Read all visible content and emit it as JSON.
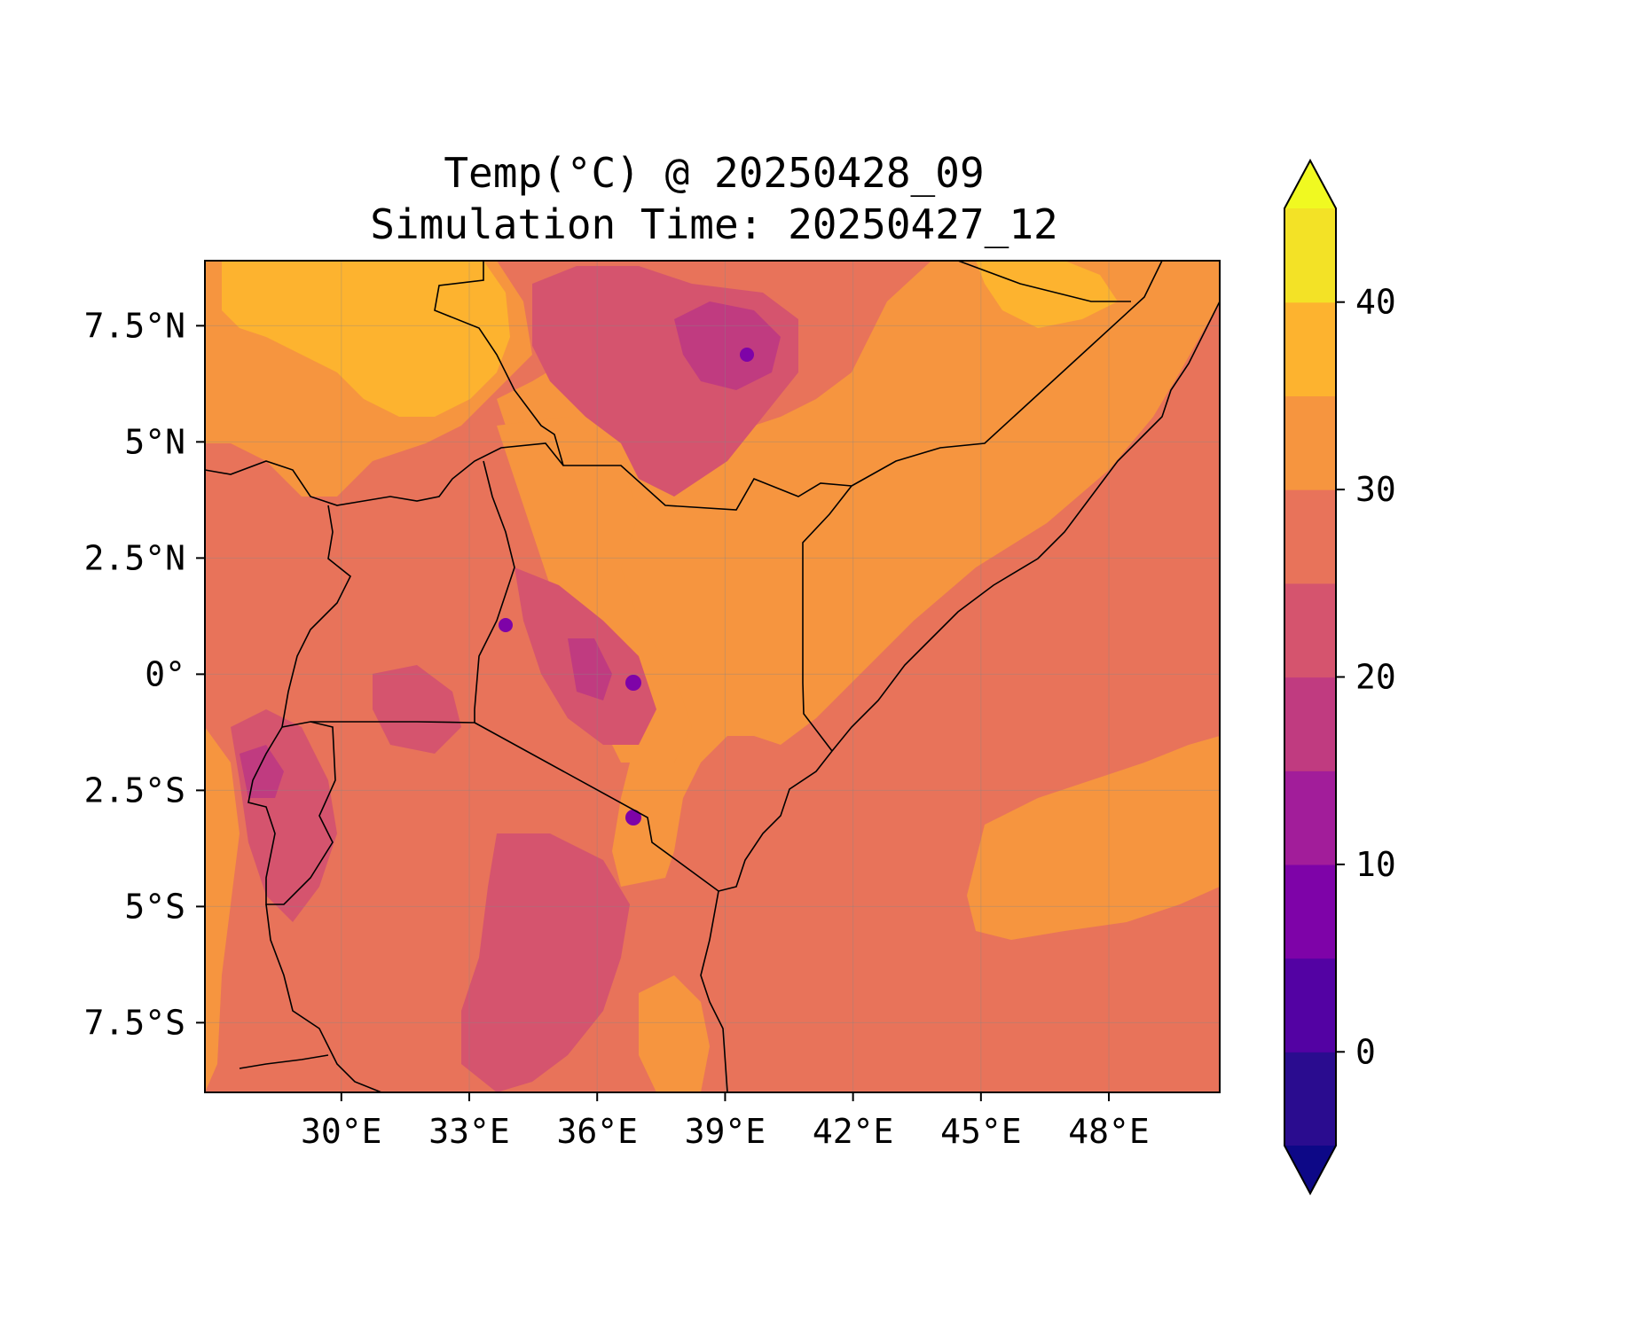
{
  "title": {
    "line1": "Temp(°C) @ 20250428_09",
    "line2": "Simulation Time: 20250427_12"
  },
  "map": {
    "region": "East Africa",
    "lon_range": [
      26.8,
      50.6
    ],
    "lat_range": [
      -9.0,
      8.9
    ],
    "x_ticks": [
      {
        "value": 30,
        "label": "30°E"
      },
      {
        "value": 33,
        "label": "33°E"
      },
      {
        "value": 36,
        "label": "36°E"
      },
      {
        "value": 39,
        "label": "39°E"
      },
      {
        "value": 42,
        "label": "42°E"
      },
      {
        "value": 45,
        "label": "45°E"
      },
      {
        "value": 48,
        "label": "48°E"
      }
    ],
    "y_ticks": [
      {
        "value": 7.5,
        "label": "7.5°N"
      },
      {
        "value": 5,
        "label": "5°N"
      },
      {
        "value": 2.5,
        "label": "2.5°N"
      },
      {
        "value": 0,
        "label": "0°"
      },
      {
        "value": -2.5,
        "label": "2.5°S"
      },
      {
        "value": -5,
        "label": "5°S"
      },
      {
        "value": -7.5,
        "label": "7.5°S"
      }
    ],
    "gridlines": true,
    "background_level_color": "#e8735a",
    "ocean_color": "#e8735a"
  },
  "colorbar": {
    "vmin": -5,
    "vmax": 45,
    "extend": "both",
    "levels": [
      {
        "from": -5,
        "to": 0,
        "color": "#2a0c8f"
      },
      {
        "from": 0,
        "to": 5,
        "color": "#5302a3"
      },
      {
        "from": 5,
        "to": 10,
        "color": "#7e03a8"
      },
      {
        "from": 10,
        "to": 15,
        "color": "#a21d9a"
      },
      {
        "from": 15,
        "to": 20,
        "color": "#c03b80"
      },
      {
        "from": 20,
        "to": 25,
        "color": "#d5546e"
      },
      {
        "from": 25,
        "to": 30,
        "color": "#e8735a"
      },
      {
        "from": 30,
        "to": 35,
        "color": "#f6953f"
      },
      {
        "from": 35,
        "to": 40,
        "color": "#fdb32f"
      },
      {
        "from": 40,
        "to": 45,
        "color": "#f3e226"
      }
    ],
    "under_color": "#0d0887",
    "over_color": "#f0f921",
    "ticks": [
      {
        "value": 0,
        "label": "0"
      },
      {
        "value": 10,
        "label": "10"
      },
      {
        "value": 20,
        "label": "20"
      },
      {
        "value": 30,
        "label": "30"
      },
      {
        "value": 40,
        "label": "40"
      }
    ]
  }
}
